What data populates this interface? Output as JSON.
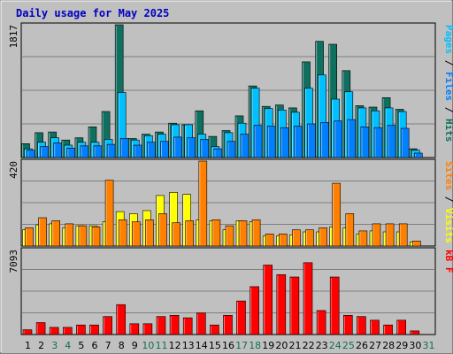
{
  "title": "Daily usage for May 2025",
  "colors": {
    "background": "#c0c0c0",
    "plot_background": "#c0c0c0",
    "gridline": "#808080",
    "title": "#0000c0",
    "hits": "#107060",
    "files": "#00c0ff",
    "pages": "#0080ff",
    "visits": "#ffff00",
    "sites": "#ff8000",
    "kbytes": "#ff0000",
    "weekend_label": "#107050",
    "weekday_label": "#000000"
  },
  "chart_data": [
    {
      "type": "bar",
      "panel": "hits-files-pages",
      "ymax_label": "1817",
      "ylim": [
        0,
        1817
      ],
      "grid": true,
      "legend": [
        {
          "text": "Pages",
          "color": "#00c0ff"
        },
        {
          "text": " / ",
          "color": "#000000"
        },
        {
          "text": "Files",
          "color": "#0080ff"
        },
        {
          "text": " / ",
          "color": "#000000"
        },
        {
          "text": "Hits",
          "color": "#107060"
        }
      ],
      "categories": [
        "1",
        "2",
        "3",
        "4",
        "5",
        "6",
        "7",
        "8",
        "9",
        "10",
        "11",
        "12",
        "13",
        "14",
        "15",
        "16",
        "17",
        "18",
        "19",
        "20",
        "21",
        "22",
        "23",
        "24",
        "25",
        "26",
        "27",
        "28",
        "29",
        "30",
        "31"
      ],
      "series": [
        {
          "name": "Hits",
          "color": "#107060",
          "values": [
            190,
            340,
            350,
            240,
            270,
            420,
            630,
            1817,
            260,
            320,
            350,
            470,
            450,
            640,
            290,
            370,
            570,
            980,
            700,
            720,
            680,
            1310,
            1590,
            1550,
            1190,
            710,
            690,
            820,
            660,
            120,
            0
          ]
        },
        {
          "name": "Files",
          "color": "#00c0ff",
          "values": [
            120,
            210,
            270,
            170,
            210,
            210,
            250,
            890,
            240,
            300,
            320,
            450,
            450,
            320,
            150,
            340,
            470,
            950,
            670,
            650,
            620,
            950,
            1130,
            800,
            900,
            680,
            640,
            680,
            630,
            100,
            0
          ]
        },
        {
          "name": "Pages",
          "color": "#0080ff",
          "values": [
            100,
            150,
            200,
            130,
            160,
            160,
            180,
            260,
            170,
            210,
            220,
            280,
            270,
            250,
            120,
            220,
            320,
            440,
            430,
            410,
            430,
            460,
            480,
            500,
            520,
            420,
            410,
            440,
            400,
            60,
            0
          ]
        }
      ]
    },
    {
      "type": "bar",
      "panel": "visits-sites",
      "ymax_label": "420",
      "ylim": [
        0,
        420
      ],
      "grid": true,
      "legend": [
        {
          "text": "Sites",
          "color": "#ff8000"
        },
        {
          "text": " / ",
          "color": "#000000"
        },
        {
          "text": "Visits",
          "color": "#ffff00"
        }
      ],
      "categories": [
        "1",
        "2",
        "3",
        "4",
        "5",
        "6",
        "7",
        "8",
        "9",
        "10",
        "11",
        "12",
        "13",
        "14",
        "15",
        "16",
        "17",
        "18",
        "19",
        "20",
        "21",
        "22",
        "23",
        "24",
        "25",
        "26",
        "27",
        "28",
        "29",
        "30",
        "31"
      ],
      "series": [
        {
          "name": "Visits",
          "color": "#ffff00",
          "values": [
            80,
            105,
            110,
            90,
            100,
            100,
            120,
            170,
            160,
            175,
            250,
            265,
            255,
            130,
            125,
            80,
            125,
            120,
            50,
            50,
            55,
            70,
            70,
            95,
            90,
            60,
            75,
            70,
            70,
            20,
            0
          ]
        },
        {
          "name": "Sites",
          "color": "#ff8000",
          "values": [
            90,
            140,
            125,
            110,
            100,
            95,
            325,
            130,
            120,
            130,
            160,
            115,
            125,
            420,
            130,
            100,
            125,
            130,
            60,
            60,
            80,
            80,
            90,
            310,
            160,
            75,
            110,
            110,
            110,
            25,
            0
          ]
        }
      ]
    },
    {
      "type": "bar",
      "panel": "kbytes",
      "ymax_label": "7093",
      "ylim": [
        0,
        7093
      ],
      "grid": true,
      "legend": [
        {
          "text": "kB F",
          "color": "#ff0000"
        }
      ],
      "categories": [
        "1",
        "2",
        "3",
        "4",
        "5",
        "6",
        "7",
        "8",
        "9",
        "10",
        "11",
        "12",
        "13",
        "14",
        "15",
        "16",
        "17",
        "18",
        "19",
        "20",
        "21",
        "22",
        "23",
        "24",
        "25",
        "26",
        "27",
        "28",
        "29",
        "30",
        "31"
      ],
      "series": [
        {
          "name": "kB F",
          "color": "#ff0000",
          "values": [
            400,
            1000,
            600,
            600,
            800,
            800,
            1500,
            2500,
            900,
            900,
            1500,
            1600,
            1400,
            1800,
            800,
            1600,
            2800,
            4000,
            5800,
            5000,
            4800,
            6000,
            2000,
            4800,
            1600,
            1500,
            1200,
            800,
            1200,
            300,
            0
          ]
        }
      ]
    }
  ],
  "x_labels": [
    {
      "text": "1",
      "weekend": false
    },
    {
      "text": "2",
      "weekend": false
    },
    {
      "text": "3",
      "weekend": true
    },
    {
      "text": "4",
      "weekend": true
    },
    {
      "text": "5",
      "weekend": false
    },
    {
      "text": "6",
      "weekend": false
    },
    {
      "text": "7",
      "weekend": false
    },
    {
      "text": "8",
      "weekend": false
    },
    {
      "text": "9",
      "weekend": false
    },
    {
      "text": "10",
      "weekend": true
    },
    {
      "text": "11",
      "weekend": true
    },
    {
      "text": "12",
      "weekend": false
    },
    {
      "text": "13",
      "weekend": false
    },
    {
      "text": "14",
      "weekend": false
    },
    {
      "text": "15",
      "weekend": false
    },
    {
      "text": "16",
      "weekend": false
    },
    {
      "text": "17",
      "weekend": true
    },
    {
      "text": "18",
      "weekend": true
    },
    {
      "text": "19",
      "weekend": false
    },
    {
      "text": "20",
      "weekend": false
    },
    {
      "text": "21",
      "weekend": false
    },
    {
      "text": "22",
      "weekend": false
    },
    {
      "text": "23",
      "weekend": false
    },
    {
      "text": "24",
      "weekend": true
    },
    {
      "text": "25",
      "weekend": true
    },
    {
      "text": "26",
      "weekend": false
    },
    {
      "text": "27",
      "weekend": false
    },
    {
      "text": "28",
      "weekend": false
    },
    {
      "text": "29",
      "weekend": false
    },
    {
      "text": "30",
      "weekend": false
    },
    {
      "text": "31",
      "weekend": true
    }
  ]
}
